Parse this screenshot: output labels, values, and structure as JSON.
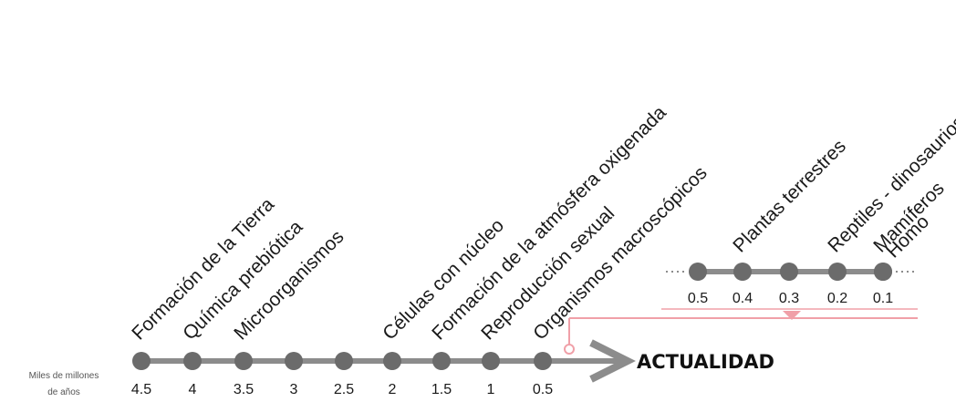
{
  "axis_unit": {
    "line1": "Miles de millones",
    "line2": "de años"
  },
  "now_label": "ACTUALIDAD",
  "main_timeline": [
    {
      "tick": "4.5",
      "event": "Formación de la Tierra"
    },
    {
      "tick": "4",
      "event": "Química prebiótica"
    },
    {
      "tick": "3.5",
      "event": "Microorganismos"
    },
    {
      "tick": "3",
      "event": ""
    },
    {
      "tick": "2.5",
      "event": ""
    },
    {
      "tick": "2",
      "event": "Células con núcleo"
    },
    {
      "tick": "1.5",
      "event": "Formación de la atmósfera oxigenada"
    },
    {
      "tick": "1",
      "event": "Reproducción sexual"
    },
    {
      "tick": "0.5",
      "event": "Organismos macroscópicos"
    }
  ],
  "zoom_timeline": [
    {
      "tick": "0.5",
      "event": ""
    },
    {
      "tick": "0.4",
      "event": "Plantas terrestres"
    },
    {
      "tick": "0.3",
      "event": ""
    },
    {
      "tick": "0.2",
      "event": "Reptiles - dinosaurios"
    },
    {
      "tick": "0.1",
      "event": "Mamíferos"
    },
    {
      "tick": "",
      "event": "Homo"
    }
  ],
  "colors": {
    "line": "#8c8c8c",
    "dot": "#6b6b6b",
    "connector": "#f0a0a8",
    "text": "#1a1a1a"
  }
}
